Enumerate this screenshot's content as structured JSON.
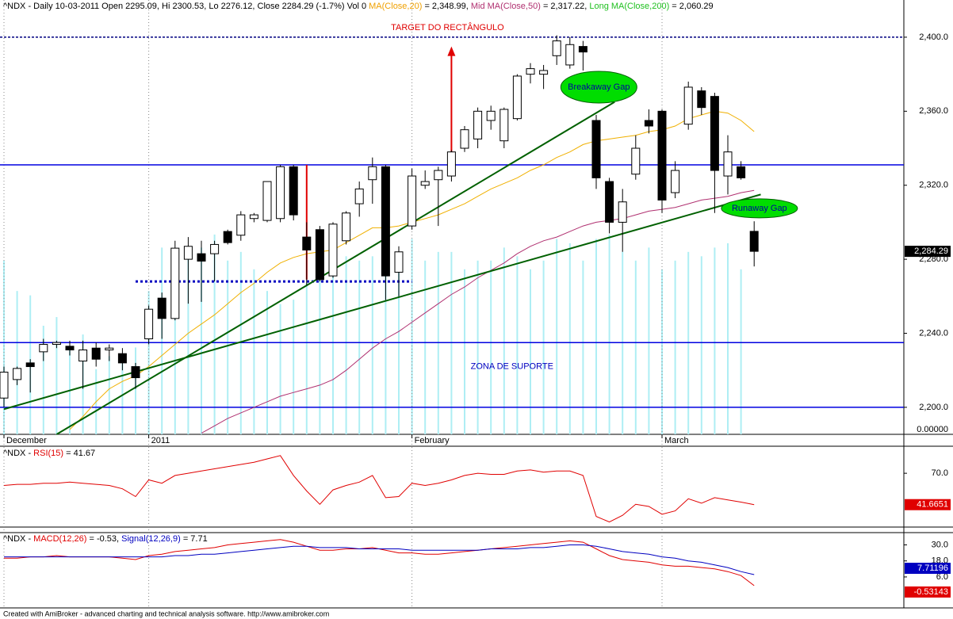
{
  "chart_data": [
    {
      "type": "candlestick",
      "header": [
        {
          "text": "^NDX - Daily 10-03-2011 Open 2295.09, Hi 2300.53, Lo 2276.12, Close 2284.29 (-1.7%) Vol 0 ",
          "color": "#000000"
        },
        {
          "text": "MA(Close,20)",
          "color": "#f0a000"
        },
        {
          "text": " = 2,348.99, ",
          "color": "#000000"
        },
        {
          "text": "Mid MA(Close,50)",
          "color": "#b03070"
        },
        {
          "text": " = 2,317.22, ",
          "color": "#000000"
        },
        {
          "text": "Long MA(Close,200)",
          "color": "#20c020"
        },
        {
          "text": " = 2,060.29",
          "color": "#000000"
        }
      ],
      "categories": [
        "December",
        null,
        null,
        null,
        null,
        null,
        null,
        null,
        null,
        null,
        null,
        "2011",
        null,
        null,
        null,
        null,
        null,
        null,
        null,
        null,
        null,
        null,
        null,
        null,
        null,
        null,
        null,
        null,
        null,
        null,
        null,
        "February",
        null,
        null,
        null,
        null,
        null,
        null,
        null,
        null,
        null,
        null,
        null,
        null,
        null,
        null,
        null,
        null,
        null,
        null,
        "March",
        null,
        null,
        null,
        null,
        null,
        null,
        null
      ],
      "open": [
        2205,
        2215,
        2224,
        2230,
        2234,
        2233,
        2225,
        2232,
        2231,
        2229,
        2222,
        2237,
        2259,
        2248,
        2280,
        2283,
        2283,
        2295,
        2293,
        2302,
        2301,
        2302,
        2330,
        2292,
        2296,
        2271,
        2290,
        2310,
        2323,
        2330,
        2273,
        2298,
        2320,
        2323,
        2325,
        2340,
        2345,
        2355,
        2344,
        2356,
        2380,
        2380,
        2390,
        2385,
        2395,
        2355,
        2322,
        2300,
        2326,
        2355,
        2360,
        2316,
        2353,
        2371,
        2368,
        2325,
        2330,
        2295.09
      ],
      "high": [
        2222,
        2222,
        2226,
        2237,
        2236,
        2236,
        2236,
        2235,
        2234,
        2232,
        2224,
        2255,
        2262,
        2290,
        2292,
        2290,
        2290,
        2296,
        2306,
        2305,
        2322,
        2331,
        2331,
        2300,
        2298,
        2300,
        2306,
        2322,
        2335,
        2331,
        2287,
        2329,
        2328,
        2330,
        2339,
        2352,
        2362,
        2363,
        2362,
        2380,
        2386,
        2385,
        2401,
        2400,
        2398,
        2358,
        2324,
        2318,
        2347,
        2361,
        2361,
        2333,
        2376,
        2373,
        2370,
        2347,
        2333,
        2300.53
      ],
      "low": [
        2200,
        2212,
        2208,
        2225,
        2232,
        2228,
        2210,
        2222,
        2225,
        2220,
        2210,
        2234,
        2237,
        2247,
        2256,
        2257,
        2268,
        2288,
        2290,
        2300,
        2300,
        2300,
        2301,
        2266,
        2268,
        2270,
        2288,
        2303,
        2310,
        2258,
        2260,
        2296,
        2318,
        2298,
        2322,
        2338,
        2340,
        2350,
        2340,
        2355,
        2375,
        2372,
        2385,
        2383,
        2382,
        2318,
        2294,
        2284,
        2323,
        2348,
        2305,
        2313,
        2350,
        2358,
        2305,
        2315,
        2323,
        2276.12
      ],
      "close": [
        2219,
        2221,
        2222,
        2234,
        2235,
        2231,
        2231,
        2226,
        2232,
        2224,
        2216,
        2253,
        2248,
        2286,
        2287,
        2279,
        2288,
        2289,
        2304,
        2304,
        2322,
        2330,
        2304,
        2285,
        2269,
        2299,
        2305,
        2318,
        2330,
        2271,
        2284,
        2325,
        2322,
        2328,
        2338,
        2350,
        2360,
        2360,
        2361,
        2379,
        2383,
        2382,
        2398,
        2396,
        2392,
        2324,
        2300,
        2311,
        2340,
        2352,
        2312,
        2328,
        2373,
        2362,
        2328,
        2338,
        2324,
        2284.29
      ],
      "series": [
        {
          "name": "MA(Close,20)",
          "color": "#f0b000",
          "values": [
            null,
            null,
            null,
            null,
            null,
            2188,
            2195,
            2203,
            2210,
            2214,
            2217,
            2222,
            2228,
            2234,
            2240,
            2245,
            2250,
            2256,
            2262,
            2267,
            2273,
            2278,
            2281,
            2283,
            2284,
            2285,
            2289,
            2293,
            2297,
            2297,
            2298,
            2300,
            2302,
            2304,
            2307,
            2310,
            2314,
            2318,
            2321,
            2324,
            2328,
            2331,
            2335,
            2338,
            2342,
            2344,
            2345,
            2346,
            2347,
            2349,
            2350,
            2352,
            2356,
            2358,
            2360,
            2359,
            2355,
            2348.99
          ]
        },
        {
          "name": "Mid MA(Close,50)",
          "color": "#b03070",
          "values": [
            null,
            null,
            null,
            null,
            null,
            null,
            null,
            null,
            null,
            null,
            null,
            null,
            null,
            null,
            null,
            2186,
            2190,
            2194,
            2197,
            2200,
            2203,
            2206,
            2208,
            2210,
            2212,
            2215,
            2220,
            2226,
            2232,
            2237,
            2241,
            2246,
            2251,
            2256,
            2261,
            2265,
            2270,
            2274,
            2278,
            2283,
            2287,
            2290,
            2292,
            2295,
            2298,
            2300,
            2301,
            2302,
            2304,
            2306,
            2307,
            2308,
            2310,
            2312,
            2313,
            2314,
            2316,
            2317.22
          ]
        }
      ],
      "volume": [
        40,
        33,
        32,
        25,
        27,
        20,
        23,
        15,
        18,
        17,
        20,
        33,
        43,
        35,
        42,
        43,
        46,
        40,
        42,
        38,
        33,
        30,
        31,
        35,
        37,
        40,
        41,
        40,
        41,
        45,
        40,
        45,
        40,
        42,
        42,
        38,
        40,
        40,
        43,
        41,
        38,
        40,
        45,
        44,
        40,
        45,
        46,
        42,
        40,
        43,
        38,
        40,
        42,
        41,
        43,
        44,
        38,
        0
      ],
      "volume_ylim": [
        0,
        100
      ],
      "volume_label": "0.00000",
      "volume_color": "#aeeef4",
      "ylim": [
        2185.4,
        2420.1
      ],
      "yticks": [
        {
          "value": 2200,
          "label": "2,200.0"
        },
        {
          "value": 2240,
          "label": "2,240.0"
        },
        {
          "value": 2280,
          "label": "2,280.0"
        },
        {
          "value": 2320,
          "label": "2,320.0"
        },
        {
          "value": 2360,
          "label": "2,360.0"
        },
        {
          "value": 2400,
          "label": "2,400.0"
        }
      ],
      "last_value_label": "2,284.29",
      "hlines": [
        {
          "value": 2400,
          "color": "#000080",
          "dash": "3 2"
        },
        {
          "value": 2331,
          "color": "#0000e0",
          "dash": ""
        },
        {
          "value": 2235,
          "color": "#0000e0",
          "dash": ""
        },
        {
          "value": 2200,
          "color": "#0000e0",
          "dash": ""
        }
      ],
      "segments": [
        {
          "from": [
            10,
            2268
          ],
          "to": [
            31,
            2268
          ],
          "color": "#0000c0",
          "dash": "3 3",
          "width": 3
        },
        {
          "from": [
            0,
            2199
          ],
          "to": [
            57.5,
            2315
          ],
          "color": "#006000",
          "dash": "",
          "width": 2
        },
        {
          "from": [
            4,
            2185.4
          ],
          "to": [
            46.4,
            2365
          ],
          "color": "#006000",
          "dash": "",
          "width": 2
        },
        {
          "from": [
            23,
            2269
          ],
          "to": [
            23,
            2331
          ],
          "color": "#e00000",
          "dash": "",
          "width": 2
        }
      ],
      "arrow": {
        "from": [
          34,
          2338
        ],
        "to": [
          34,
          2395
        ],
        "color": "#e00000"
      },
      "annotations": [
        {
          "text": "TARGET DO RECTÂNGULO",
          "at": [
            33.7,
            2405
          ],
          "color": "#e00000"
        },
        {
          "text": "ZONA DE SUPORTE",
          "at": [
            38.6,
            2222
          ],
          "color": "#0000c0"
        }
      ],
      "gaps": [
        {
          "text": "Breakaway Gap",
          "at": [
            45.2,
            2373
          ],
          "color": "#00dd00"
        },
        {
          "text": "Runaway Gap",
          "at": [
            57.4,
            2307.5
          ],
          "color": "#00dd00"
        }
      ]
    },
    {
      "type": "line",
      "header": [
        {
          "text": "^NDX - ",
          "color": "#000000"
        },
        {
          "text": "RSI(15)",
          "color": "#e00000"
        },
        {
          "text": " = 41.67",
          "color": "#000000"
        }
      ],
      "series": [
        {
          "name": "RSI(15)",
          "color": "#e00000",
          "values": [
            59,
            60,
            60,
            61,
            61,
            62,
            61,
            60,
            59,
            56,
            49,
            64,
            61,
            68,
            70,
            72,
            74,
            76,
            78,
            80,
            83,
            86,
            68,
            54,
            42,
            55,
            59,
            62,
            68,
            48,
            49,
            61,
            59,
            61,
            64,
            68,
            70,
            69,
            69,
            72,
            73,
            71,
            72,
            72,
            68,
            31,
            26,
            32,
            42,
            40,
            33,
            36,
            47,
            43,
            48,
            46,
            44,
            41.6651
          ],
          "last_value_label": "41.6651"
        }
      ],
      "ylim": [
        25,
        93
      ],
      "yticks": [
        {
          "value": 70,
          "label": "70.0"
        }
      ]
    },
    {
      "type": "line",
      "header": [
        {
          "text": "^NDX - ",
          "color": "#000000"
        },
        {
          "text": "MACD(12,26)",
          "color": "#e00000"
        },
        {
          "text": " = -0.53, ",
          "color": "#000000"
        },
        {
          "text": "Signal(12,26,9)",
          "color": "#0000c0"
        },
        {
          "text": " = 7.71",
          "color": "#000000"
        }
      ],
      "series": [
        {
          "name": "MACD(12,26)",
          "color": "#e00000",
          "values": [
            20,
            20,
            21,
            21,
            22,
            21,
            21,
            21,
            21,
            20,
            19,
            22,
            23,
            25,
            26,
            27,
            28,
            30,
            31,
            32,
            33,
            34,
            32,
            29,
            26,
            26,
            27,
            27,
            28,
            26,
            24,
            24,
            23,
            23,
            24,
            25,
            26,
            27,
            28,
            29,
            30,
            31,
            32,
            33,
            32,
            27,
            22,
            19,
            18,
            17,
            15,
            14,
            14,
            13,
            12,
            10,
            7,
            -0.53143
          ],
          "last_value_label": "-0.53143"
        },
        {
          "name": "Signal(12,26,9)",
          "color": "#0000c0",
          "values": [
            21,
            21,
            21,
            21,
            21,
            21,
            21,
            21,
            21,
            21,
            21,
            21,
            21,
            22,
            22,
            23,
            23,
            24,
            25,
            26,
            27,
            28,
            29,
            29,
            28,
            28,
            28,
            27,
            27,
            27,
            27,
            26,
            26,
            26,
            26,
            26,
            26,
            27,
            27,
            27,
            28,
            28,
            29,
            30,
            30,
            29,
            27,
            25,
            24,
            23,
            21,
            20,
            18,
            17,
            15,
            13,
            10,
            7.71196
          ],
          "last_value_label": "7.71196"
        }
      ],
      "ylim": [
        -16,
        38
      ],
      "yticks": [
        {
          "value": 30,
          "label": "30.0"
        },
        {
          "value": 18,
          "label": "18.0"
        },
        {
          "value": 6,
          "label": "6.0"
        }
      ]
    }
  ],
  "footer": "Created with AmiBroker - advanced charting and technical analysis software. http://www.amibroker.com"
}
